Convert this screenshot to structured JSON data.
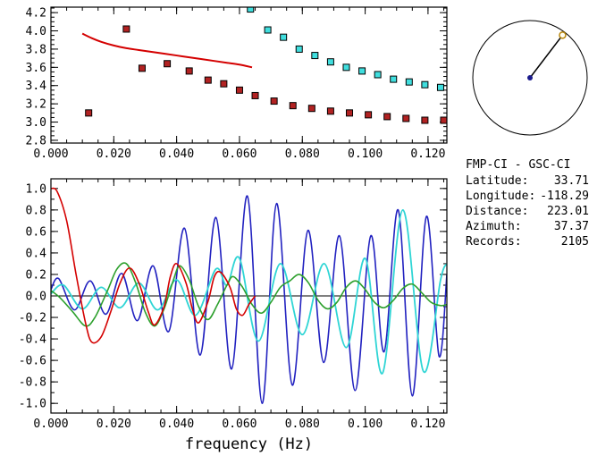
{
  "app": {
    "background": "#ffffff"
  },
  "station_pair": {
    "title": "FMP-CI - GSC-CI",
    "fields": [
      {
        "label": "Latitude:",
        "value": "33.71"
      },
      {
        "label": "Longitude:",
        "value": "-118.29"
      },
      {
        "label": "Distance:",
        "value": "223.01"
      },
      {
        "label": "Azimuth:",
        "value": "37.37"
      },
      {
        "label": "Records:",
        "value": "2105"
      }
    ]
  },
  "compass": {
    "azimuth_deg": 37.37,
    "ring_color": "#000000",
    "line_color": "#000000",
    "center_dot_color": "#1a1a8c",
    "marker_ring_color": "#b8860b",
    "marker_fill_color": "#fffdf0"
  },
  "chart_data": [
    {
      "id": "dispersion",
      "type": "scatter",
      "title": "",
      "xlabel": "",
      "ylabel": "",
      "xlim": [
        0,
        0.126
      ],
      "ylim": [
        2.77,
        4.26
      ],
      "xminor": 0.005,
      "yminor": 0.05,
      "xticks": [
        0.0,
        0.02,
        0.04,
        0.06,
        0.08,
        0.1,
        0.12
      ],
      "xtick_labels": [
        "0.000",
        "0.020",
        "0.040",
        "0.060",
        "0.080",
        "0.100",
        "0.120"
      ],
      "yticks": [
        2.8,
        3.0,
        3.2,
        3.4,
        3.6,
        3.8,
        4.0,
        4.2
      ],
      "ytick_labels": [
        "2.8",
        "3.0",
        "3.2",
        "3.4",
        "3.6",
        "3.8",
        "4.0",
        "4.2"
      ],
      "grid": false,
      "legend": false,
      "series": [
        {
          "name": "reference-dispersion-curve",
          "marker": "none",
          "color": "#d40000",
          "width": 2,
          "points": [
            [
              0.01,
              3.97
            ],
            [
              0.013,
              3.92
            ],
            [
              0.016,
              3.88
            ],
            [
              0.02,
              3.84
            ],
            [
              0.024,
              3.81
            ],
            [
              0.028,
              3.79
            ],
            [
              0.032,
              3.77
            ],
            [
              0.036,
              3.75
            ],
            [
              0.04,
              3.73
            ],
            [
              0.044,
              3.71
            ],
            [
              0.048,
              3.69
            ],
            [
              0.052,
              3.67
            ],
            [
              0.056,
              3.65
            ],
            [
              0.06,
              3.63
            ],
            [
              0.064,
              3.6
            ]
          ]
        },
        {
          "name": "measured-group-velocity",
          "marker": "square",
          "color": "#b22222",
          "edge": "#000000",
          "points": [
            [
              0.012,
              3.1
            ],
            [
              0.024,
              4.02
            ],
            [
              0.029,
              3.59
            ],
            [
              0.037,
              3.64
            ],
            [
              0.044,
              3.56
            ],
            [
              0.05,
              3.46
            ],
            [
              0.055,
              3.42
            ],
            [
              0.06,
              3.35
            ],
            [
              0.065,
              3.29
            ],
            [
              0.071,
              3.23
            ],
            [
              0.077,
              3.18
            ],
            [
              0.083,
              3.15
            ],
            [
              0.089,
              3.12
            ],
            [
              0.095,
              3.1
            ],
            [
              0.101,
              3.08
            ],
            [
              0.107,
              3.06
            ],
            [
              0.113,
              3.04
            ],
            [
              0.119,
              3.02
            ],
            [
              0.125,
              3.02
            ]
          ]
        },
        {
          "name": "measured-phase-velocity",
          "marker": "square",
          "color": "#40dede",
          "edge": "#000000",
          "points": [
            [
              0.0635,
              4.24
            ],
            [
              0.069,
              4.01
            ],
            [
              0.074,
              3.93
            ],
            [
              0.079,
              3.8
            ],
            [
              0.084,
              3.73
            ],
            [
              0.089,
              3.66
            ],
            [
              0.094,
              3.6
            ],
            [
              0.099,
              3.56
            ],
            [
              0.104,
              3.52
            ],
            [
              0.109,
              3.47
            ],
            [
              0.114,
              3.44
            ],
            [
              0.119,
              3.41
            ],
            [
              0.124,
              3.38
            ]
          ]
        }
      ]
    },
    {
      "id": "waveforms",
      "type": "line",
      "title": "",
      "xlabel": "frequency (Hz)",
      "ylabel": "",
      "xlim": [
        0,
        0.126
      ],
      "ylim": [
        -1.09,
        1.09
      ],
      "xminor": 0.005,
      "yminor": 0.1,
      "zero_line": true,
      "xticks": [
        0.0,
        0.02,
        0.04,
        0.06,
        0.08,
        0.1,
        0.12
      ],
      "xtick_labels": [
        "0.000",
        "0.020",
        "0.040",
        "0.060",
        "0.080",
        "0.100",
        "0.120"
      ],
      "yticks": [
        1.0,
        0.8,
        0.6,
        0.4,
        0.2,
        0.0,
        -0.2,
        -0.4,
        -0.6,
        -0.8,
        -1.0
      ],
      "ytick_labels": [
        "1.0",
        "0.8",
        "0.6",
        "0.4",
        "0.2",
        "0.0",
        "-0.2",
        "-0.4",
        "-0.6",
        "-0.8",
        "-1.0"
      ],
      "grid": false,
      "legend": false,
      "series": [
        {
          "name": "spectrum-blue",
          "marker": "none",
          "color": "#2222c0",
          "width": 1.6,
          "points": [
            [
              0.0,
              0.06
            ],
            [
              0.0025,
              0.16
            ],
            [
              0.0075,
              -0.13
            ],
            [
              0.0125,
              0.14
            ],
            [
              0.0175,
              -0.17
            ],
            [
              0.0225,
              0.21
            ],
            [
              0.0275,
              -0.23
            ],
            [
              0.0325,
              0.28
            ],
            [
              0.0375,
              -0.33
            ],
            [
              0.0425,
              0.63
            ],
            [
              0.0475,
              -0.55
            ],
            [
              0.0525,
              0.73
            ],
            [
              0.0575,
              -0.68
            ],
            [
              0.0625,
              0.93
            ],
            [
              0.0672,
              -1.0
            ],
            [
              0.0718,
              0.86
            ],
            [
              0.0768,
              -0.83
            ],
            [
              0.0818,
              0.61
            ],
            [
              0.0868,
              -0.62
            ],
            [
              0.0918,
              0.56
            ],
            [
              0.0968,
              -0.88
            ],
            [
              0.1018,
              0.56
            ],
            [
              0.106,
              -0.52
            ],
            [
              0.1105,
              0.8
            ],
            [
              0.115,
              -0.93
            ],
            [
              0.1195,
              0.74
            ],
            [
              0.1235,
              -0.56
            ],
            [
              0.126,
              0.2
            ]
          ]
        },
        {
          "name": "spectrum-cyan",
          "marker": "none",
          "color": "#2fd5d5",
          "width": 1.8,
          "points": [
            [
              0.0,
              0.02
            ],
            [
              0.004,
              0.1
            ],
            [
              0.01,
              -0.12
            ],
            [
              0.016,
              0.08
            ],
            [
              0.022,
              -0.11
            ],
            [
              0.028,
              0.12
            ],
            [
              0.034,
              -0.13
            ],
            [
              0.04,
              0.15
            ],
            [
              0.046,
              -0.18
            ],
            [
              0.0525,
              0.25
            ],
            [
              0.056,
              0.1
            ],
            [
              0.06,
              0.35
            ],
            [
              0.066,
              -0.42
            ],
            [
              0.073,
              0.3
            ],
            [
              0.08,
              -0.36
            ],
            [
              0.087,
              0.3
            ],
            [
              0.094,
              -0.48
            ],
            [
              0.1,
              0.35
            ],
            [
              0.1055,
              -0.72
            ],
            [
              0.112,
              0.8
            ],
            [
              0.1185,
              -0.7
            ],
            [
              0.124,
              0.15
            ],
            [
              0.126,
              0.3
            ]
          ]
        },
        {
          "name": "spectrum-green",
          "marker": "none",
          "color": "#2da02d",
          "width": 1.6,
          "points": [
            [
              0.0,
              0.05
            ],
            [
              0.003,
              -0.02
            ],
            [
              0.007,
              -0.15
            ],
            [
              0.011,
              -0.28
            ],
            [
              0.014,
              -0.2
            ],
            [
              0.018,
              0.05
            ],
            [
              0.021,
              0.25
            ],
            [
              0.024,
              0.3
            ],
            [
              0.027,
              0.12
            ],
            [
              0.03,
              -0.15
            ],
            [
              0.033,
              -0.28
            ],
            [
              0.036,
              -0.12
            ],
            [
              0.039,
              0.15
            ],
            [
              0.041,
              0.28
            ],
            [
              0.044,
              0.15
            ],
            [
              0.047,
              -0.1
            ],
            [
              0.05,
              -0.22
            ],
            [
              0.053,
              -0.08
            ],
            [
              0.056,
              0.1
            ],
            [
              0.058,
              0.18
            ],
            [
              0.061,
              0.08
            ],
            [
              0.064,
              -0.08
            ],
            [
              0.067,
              -0.16
            ],
            [
              0.07,
              -0.06
            ],
            [
              0.073,
              0.08
            ],
            [
              0.076,
              0.14
            ],
            [
              0.079,
              0.2
            ],
            [
              0.082,
              0.12
            ],
            [
              0.085,
              -0.04
            ],
            [
              0.088,
              -0.12
            ],
            [
              0.091,
              -0.06
            ],
            [
              0.094,
              0.08
            ],
            [
              0.097,
              0.14
            ],
            [
              0.1,
              0.06
            ],
            [
              0.103,
              -0.06
            ],
            [
              0.106,
              -0.11
            ],
            [
              0.109,
              -0.04
            ],
            [
              0.112,
              0.07
            ],
            [
              0.115,
              0.11
            ],
            [
              0.118,
              0.03
            ],
            [
              0.121,
              -0.06
            ],
            [
              0.124,
              -0.09
            ],
            [
              0.126,
              -0.08
            ]
          ]
        },
        {
          "name": "spectrum-red",
          "marker": "none",
          "color": "#d40000",
          "width": 1.6,
          "points": [
            [
              0.0,
              1.0
            ],
            [
              0.002,
              0.97
            ],
            [
              0.005,
              0.7
            ],
            [
              0.008,
              0.2
            ],
            [
              0.011,
              -0.25
            ],
            [
              0.013,
              -0.43
            ],
            [
              0.016,
              -0.38
            ],
            [
              0.019,
              -0.15
            ],
            [
              0.022,
              0.12
            ],
            [
              0.025,
              0.26
            ],
            [
              0.028,
              0.12
            ],
            [
              0.031,
              -0.15
            ],
            [
              0.033,
              -0.27
            ],
            [
              0.036,
              -0.1
            ],
            [
              0.038,
              0.18
            ],
            [
              0.04,
              0.3
            ],
            [
              0.043,
              0.12
            ],
            [
              0.045,
              -0.12
            ],
            [
              0.047,
              -0.25
            ],
            [
              0.05,
              -0.05
            ],
            [
              0.052,
              0.18
            ],
            [
              0.054,
              0.22
            ],
            [
              0.057,
              0.08
            ],
            [
              0.059,
              -0.12
            ],
            [
              0.061,
              -0.18
            ],
            [
              0.063,
              -0.08
            ],
            [
              0.065,
              0.0
            ]
          ]
        }
      ]
    }
  ]
}
